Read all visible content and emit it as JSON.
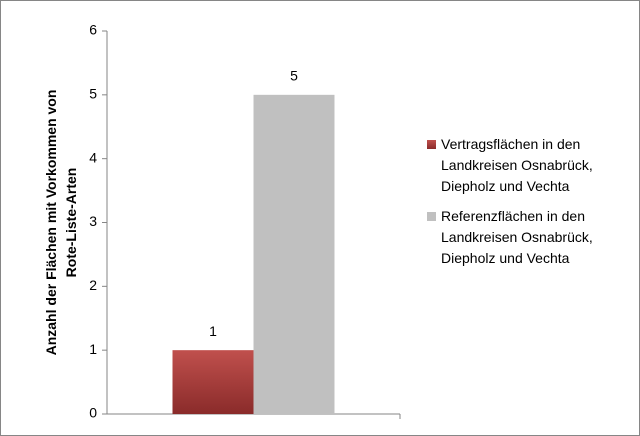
{
  "chart_data": {
    "type": "bar",
    "y_label": "Anzahl der Flächen mit Vorkommen von Rote-Liste-Arten",
    "categories": [
      null
    ],
    "series": [
      {
        "name": "Vertragsflächen in den Landkreisen Osnabrück, Diepholz und Vechta",
        "color": "#b03a37",
        "values": [
          1
        ]
      },
      {
        "name": "Referenzflächen in den Landkreisen Osnabrück, Diepholz und Vechta",
        "color": "#c0c0c0",
        "values": [
          5
        ]
      }
    ],
    "ylim": [
      0,
      6
    ],
    "yticks": [
      0,
      1,
      2,
      3,
      4,
      5,
      6
    ],
    "legend": "right"
  }
}
